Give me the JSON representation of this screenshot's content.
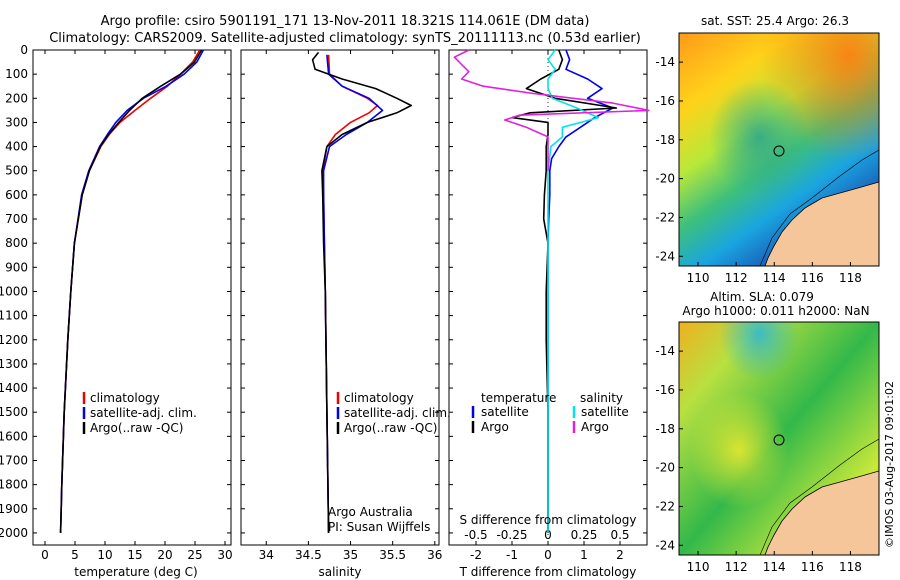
{
  "header": {
    "title_line1": "Argo profile: csiro 5901191_171 13-Nov-2011 18.321S 114.061E (DM data)",
    "title_line2": "Climatology: CARS2009. Satellite-adjusted climatology: synTS_20111113.nc (0.53d earlier)"
  },
  "colors": {
    "climatology": "#ee0000",
    "satellite": "#0000ee",
    "argo": "#000000",
    "salinity_sat": "#00e5e5",
    "salinity_argo": "#e020e0",
    "land": "#f4c69a"
  },
  "depth_axis": {
    "min": 0,
    "max": 2050,
    "ticks": [
      "0",
      "100",
      "200",
      "300",
      "400",
      "500",
      "600",
      "700",
      "800",
      "900",
      "1000",
      "1100",
      "1200",
      "1300",
      "1400",
      "1500",
      "1600",
      "1700",
      "1800",
      "1900",
      "2000"
    ]
  },
  "chart_data": [
    {
      "type": "line",
      "id": "temperature",
      "xlabel": "temperature (deg C)",
      "xlim": [
        -2,
        31
      ],
      "xticks": [
        "0",
        "5",
        "10",
        "15",
        "20",
        "25",
        "30"
      ],
      "legend": [
        "climatology",
        "satellite-adj. clim.",
        "Argo(..raw -QC)"
      ],
      "series": [
        {
          "name": "climatology",
          "color": "climatology",
          "depth": [
            0,
            50,
            100,
            150,
            200,
            250,
            300,
            350,
            400,
            500,
            600,
            800,
            1000,
            1200,
            1500,
            1800,
            2000
          ],
          "values": [
            25.8,
            24.6,
            22.6,
            20.4,
            17.6,
            15.0,
            12.5,
            10.7,
            9.3,
            7.4,
            6.2,
            4.9,
            4.3,
            3.8,
            3.2,
            2.8,
            2.6
          ]
        },
        {
          "name": "satellite-adj. clim.",
          "color": "satellite",
          "depth": [
            0,
            50,
            100,
            150,
            200,
            250,
            300,
            350,
            400,
            500,
            600,
            800,
            1000,
            1200,
            1500,
            1800,
            2000
          ],
          "values": [
            26.4,
            25.3,
            23.2,
            20.2,
            16.4,
            13.7,
            11.8,
            10.4,
            9.1,
            7.3,
            6.1,
            4.9,
            4.3,
            3.8,
            3.2,
            2.8,
            2.6
          ]
        },
        {
          "name": "Argo(..raw -QC)",
          "color": "argo",
          "depth": [
            0,
            50,
            100,
            150,
            200,
            250,
            300,
            350,
            400,
            500,
            600,
            800,
            1000,
            1200,
            1500,
            1800,
            2000
          ],
          "values": [
            26.1,
            24.9,
            22.6,
            19.3,
            16.2,
            14.1,
            12.3,
            10.6,
            9.2,
            7.4,
            6.2,
            4.9,
            4.3,
            3.8,
            3.2,
            2.8,
            2.6
          ]
        }
      ]
    },
    {
      "type": "line",
      "id": "salinity",
      "xlabel": "salinity",
      "xlim": [
        33.7,
        36.05
      ],
      "xticks": [
        "34",
        "34.5",
        "35",
        "35.5",
        "36"
      ],
      "legend": [
        "climatology",
        "satellite-adj. clim.",
        "Argo(..raw -QC)"
      ],
      "annotation": [
        "Argo Australia",
        "PI: Susan Wijffels"
      ],
      "series": [
        {
          "name": "climatology",
          "color": "climatology",
          "depth": [
            20,
            100,
            150,
            200,
            230,
            260,
            300,
            350,
            400,
            500,
            600,
            800,
            1000,
            1500,
            2000
          ],
          "values": [
            34.74,
            34.75,
            34.9,
            35.2,
            35.32,
            35.22,
            35.0,
            34.82,
            34.72,
            34.67,
            34.68,
            34.69,
            34.7,
            34.72,
            34.74
          ]
        },
        {
          "name": "satellite-adj. clim.",
          "color": "satellite",
          "depth": [
            20,
            100,
            150,
            200,
            250,
            300,
            350,
            400,
            500,
            600,
            800,
            1000,
            1500,
            2000
          ],
          "values": [
            34.72,
            34.74,
            34.9,
            35.22,
            35.38,
            35.2,
            34.95,
            34.75,
            34.68,
            34.68,
            34.69,
            34.7,
            34.72,
            34.74
          ]
        },
        {
          "name": "Argo(..raw -QC)",
          "color": "argo",
          "depth": [
            10,
            40,
            80,
            120,
            160,
            200,
            230,
            260,
            300,
            350,
            400,
            500,
            600,
            800,
            1000,
            1500,
            2000
          ],
          "values": [
            34.62,
            34.55,
            34.58,
            34.9,
            35.3,
            35.55,
            35.72,
            35.55,
            35.2,
            34.9,
            34.72,
            34.66,
            34.67,
            34.68,
            34.7,
            34.72,
            34.74
          ]
        }
      ]
    },
    {
      "type": "line",
      "id": "difference",
      "xlabel": "T difference from climatology",
      "xlabel_top": "S difference from climatology",
      "xlim": [
        -2.75,
        2.75
      ],
      "xticks": [
        "-2",
        "-1",
        "0",
        "1",
        "2"
      ],
      "s_ticks": [
        "-0.5",
        "-0.25",
        "0",
        "0.25",
        "0.5"
      ],
      "legend": {
        "temperature_title": "temperature",
        "salinity_title": "salinity",
        "t_sat": "satellite",
        "t_argo": "Argo",
        "s_sat": "satellite",
        "s_argo": "Argo"
      },
      "series": [
        {
          "name": "T satellite",
          "color": "satellite",
          "depth": [
            0,
            40,
            80,
            120,
            160,
            200,
            240,
            280,
            320,
            360,
            400,
            450,
            500,
            600,
            700,
            800,
            1000,
            1500,
            2000
          ],
          "values": [
            0.5,
            0.6,
            0.5,
            1.1,
            1.5,
            1.1,
            1.8,
            1.3,
            0.9,
            0.5,
            0.3,
            0.1,
            0.05,
            0.05,
            0.02,
            0.0,
            0.0,
            0.0,
            0.0
          ]
        },
        {
          "name": "T Argo",
          "color": "argo",
          "depth": [
            0,
            40,
            80,
            120,
            160,
            200,
            240,
            260,
            280,
            300,
            350,
            400,
            500,
            600,
            700,
            800,
            1000,
            1200,
            1500,
            1700,
            2000
          ],
          "values": [
            0.3,
            0.4,
            0.3,
            -0.2,
            -0.6,
            0.2,
            1.9,
            -0.5,
            -1.0,
            0.0,
            0.0,
            -0.05,
            -0.05,
            -0.1,
            -0.12,
            0.0,
            -0.05,
            -0.05,
            0.0,
            0.0,
            0.0
          ]
        },
        {
          "name": "S satellite",
          "color": "salinity_sat",
          "depth": [
            0,
            40,
            80,
            120,
            160,
            200,
            240,
            280,
            320,
            360,
            400,
            500,
            600,
            800,
            1000,
            1500,
            2000
          ],
          "values": [
            0.05,
            0.0,
            0.05,
            0.0,
            0.0,
            0.03,
            0.2,
            0.35,
            0.1,
            0.1,
            0.02,
            0.0,
            0.0,
            0.0,
            0.0,
            0.0,
            0.0
          ]
        },
        {
          "name": "S Argo",
          "color": "salinity_argo",
          "depth": [
            0,
            30,
            60,
            90,
            120,
            150,
            180,
            220,
            250,
            270,
            290,
            320,
            360,
            400,
            450,
            500
          ],
          "values": [
            -0.55,
            -0.65,
            -0.6,
            -0.55,
            -0.6,
            -0.45,
            -0.1,
            0.45,
            0.7,
            -0.2,
            -0.3,
            -0.15,
            0.0,
            0.0,
            0.0,
            0.0
          ]
        }
      ]
    },
    {
      "type": "heatmap",
      "id": "sst_map",
      "title": "sat. SST: 25.4  Argo: 26.3",
      "xlim": [
        109,
        119.5
      ],
      "ylim": [
        -24.5,
        -12.5
      ],
      "xticks": [
        "110",
        "112",
        "114",
        "116",
        "118"
      ],
      "yticks": [
        "-14",
        "-16",
        "-18",
        "-20",
        "-22",
        "-24"
      ],
      "marker": {
        "lon": 114.061,
        "lat": -18.321
      }
    },
    {
      "type": "heatmap",
      "id": "sla_map",
      "title": "Altim. SLA: 0.079",
      "subtitle": "Argo h1000: 0.011  h2000: NaN",
      "xlim": [
        109,
        119.5
      ],
      "ylim": [
        -24.5,
        -12.5
      ],
      "xticks": [
        "110",
        "112",
        "114",
        "116",
        "118"
      ],
      "yticks": [
        "-14",
        "-16",
        "-18",
        "-20",
        "-22",
        "-24"
      ],
      "marker": {
        "lon": 114.061,
        "lat": -18.321
      }
    }
  ],
  "footer": {
    "watermark": "©IMOS 03-Aug-2017 09:01:02"
  }
}
